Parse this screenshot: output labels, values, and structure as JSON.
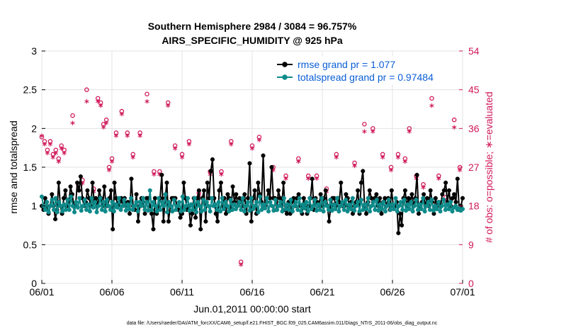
{
  "colors": {
    "rmse": "#000000",
    "spread": "#0e8a8a",
    "obs": "#d0185a",
    "legend_text": "#0a5ed7"
  },
  "chart_data": {
    "type": "line",
    "title": "Southern Hemisphere 2984 / 3084 = 96.757%",
    "subtitle": "AIRS_SPECIFIC_HUMIDITY @ 925 hPa",
    "xlabel": "Jun.01,2011 00:00:00 start",
    "ylabel": "rmse and totalspread",
    "ylabel_right": "# of obs: o=possible; ∗=evaluated",
    "xlim": [
      0,
      30
    ],
    "ylim": [
      0,
      3
    ],
    "ylim_right": [
      0,
      54
    ],
    "x_ticks": [
      0,
      5,
      10,
      15,
      20,
      25,
      30
    ],
    "x_tick_labels": [
      "06/01",
      "06/06",
      "06/11",
      "06/16",
      "06/21",
      "06/26",
      "07/01"
    ],
    "y_ticks": [
      0,
      0.5,
      1,
      1.5,
      2,
      2.5,
      3
    ],
    "y_tick_labels": [
      "0",
      "0.5",
      "1",
      "1.5",
      "2",
      "2.5",
      "3"
    ],
    "y_right_ticks": [
      0,
      9,
      18,
      27,
      36,
      45,
      54
    ],
    "y_right_tick_labels": [
      "0",
      "9",
      "18",
      "27",
      "36",
      "45",
      "54"
    ],
    "grid": true,
    "legend_position": "top-right",
    "series": [
      {
        "name": "rmse grand pr = 1.077",
        "axis": "left",
        "marker": "filled-circle",
        "values": [
          1.0,
          0.95,
          1.1,
          1.0,
          0.9,
          1.0,
          1.15,
          1.0,
          0.83,
          0.95,
          1.3,
          1.0,
          0.9,
          1.1,
          1.2,
          1.0,
          1.05,
          1.25,
          1.15,
          1.0,
          1.0,
          1.3,
          1.2,
          1.38,
          1.1,
          1.0,
          1.05,
          1.2,
          1.1,
          1.0,
          1.3,
          1.05,
          1.1,
          1.0,
          1.2,
          1.1,
          1.0,
          1.25,
          1.0,
          1.0,
          1.1,
          1.2,
          0.7,
          1.3,
          1.1,
          1.0,
          1.05,
          1.1,
          1.0,
          1.1,
          1.0,
          1.05,
          0.9,
          1.35,
          1.0,
          0.95,
          1.15,
          0.8,
          1.0,
          1.1,
          1.05,
          0.9,
          1.1,
          1.1,
          1.0,
          0.9,
          0.7,
          1.1,
          0.9,
          1.0,
          1.1,
          1.4,
          0.8,
          1.1,
          1.3,
          0.8,
          1.0,
          1.1,
          1.1,
          1.1,
          1.0,
          0.95,
          0.85,
          0.9,
          1.3,
          1.1,
          0.95,
          1.0,
          0.75,
          0.9,
          1.1,
          0.85,
          1.1,
          1.2,
          0.7,
          1.1,
          1.2,
          0.8,
          1.3,
          1.1,
          1.45,
          1.6,
          1.1,
          0.9,
          0.8,
          1.2,
          1.3,
          1.0,
          1.1,
          0.9,
          1.15,
          1.1,
          0.95,
          1.25,
          1.05,
          1.15,
          1.0,
          1.1,
          1.05,
          1.0,
          1.15,
          0.9,
          1.1,
          1.55,
          0.8,
          1.1,
          1.2,
          0.9,
          1.3,
          1.15,
          1.05,
          1.65,
          1.0,
          1.05,
          1.2,
          1.1,
          1.5,
          1.1,
          1.1,
          0.95,
          1.2,
          1.1,
          1.0,
          1.3,
          0.95,
          0.9,
          1.05,
          0.9,
          1.05,
          1.1,
          1.0,
          1.1,
          1.15,
          1.0,
          0.9,
          1.1,
          1.0,
          0.9,
          1.0,
          1.1,
          1.35,
          0.95,
          1.1,
          1.05,
          1.0,
          1.15,
          1.0,
          1.1,
          1.2,
          1.0,
          0.8,
          1.0,
          1.1,
          1.1,
          1.0,
          1.1,
          1.05,
          1.3,
          1.0,
          1.0,
          1.15,
          1.1,
          1.0,
          1.05,
          0.9,
          1.0,
          1.05,
          1.2,
          0.9,
          1.3,
          1.45,
          1.0,
          0.9,
          1.05,
          1.2,
          1.1,
          1.05,
          1.1,
          1.15,
          1.0,
          1.1,
          0.9,
          1.05,
          1.1,
          1.0,
          1.1,
          0.95,
          1.2,
          1.0,
          1.0,
          1.05,
          0.65,
          0.9,
          0.75,
          1.1,
          1.2,
          1.0,
          1.1,
          1.05,
          1.15,
          1.0,
          1.1,
          1.4,
          0.9,
          1.0,
          1.05,
          1.15,
          1.0,
          1.1,
          1.0,
          1.2,
          1.05,
          0.9,
          1.1,
          1.0,
          1.05,
          1.0,
          1.15,
          1.2,
          1.3,
          1.05,
          1.2,
          1.0,
          1.1,
          1.15,
          1.05,
          1.35,
          0.95,
          1.0,
          1.1
        ]
      },
      {
        "name": "totalspread grand pr = 0.97484",
        "axis": "left",
        "marker": "filled-circle",
        "values": [
          1.12,
          1.0,
          0.95,
          1.05,
          0.92,
          1.0,
          1.08,
          0.95,
          1.1,
          0.92,
          1.05,
          1.0,
          0.93,
          1.02,
          0.95,
          1.08,
          0.95,
          1.12,
          1.0,
          0.92,
          1.05,
          0.98,
          1.1,
          0.94,
          1.0,
          1.08,
          0.95,
          1.02,
          0.93,
          1.1,
          0.98,
          1.05,
          0.92,
          1.0,
          1.1,
          0.95,
          1.05,
          0.93,
          1.08,
          1.0,
          0.95,
          1.05,
          0.93,
          1.02,
          0.98,
          1.1,
          0.95,
          1.0,
          1.08,
          0.94,
          1.02,
          0.96,
          1.1,
          0.95,
          1.0,
          1.05,
          0.93,
          1.05,
          1.0,
          1.1,
          0.95,
          1.05,
          0.94,
          1.2,
          0.95,
          1.05,
          1.0,
          0.93,
          1.1,
          0.95,
          1.05,
          1.0,
          1.15,
          0.92,
          1.05,
          1.0,
          0.93,
          1.08,
          0.95,
          1.0,
          1.05,
          0.93,
          1.12,
          0.95,
          1.0,
          1.1,
          0.94,
          1.02,
          0.95,
          1.1,
          0.92,
          1.05,
          1.0,
          0.93,
          1.08,
          0.95,
          1.05,
          1.0,
          0.93,
          1.1,
          1.0,
          1.02,
          0.95,
          1.05,
          0.93,
          1.1,
          0.96,
          1.05,
          1.0,
          0.93,
          1.08,
          0.95,
          1.02,
          0.96,
          1.0,
          1.05,
          0.95,
          1.1,
          0.93,
          1.0,
          1.05,
          0.94,
          1.1,
          0.96,
          1.0,
          1.05,
          0.92,
          1.12,
          0.95,
          1.02,
          0.97,
          1.1,
          0.93,
          1.05,
          1.0,
          0.94,
          1.08,
          0.95,
          1.0,
          1.05,
          0.93,
          1.1,
          0.96,
          1.02,
          0.95,
          1.08,
          0.93,
          1.0,
          1.05,
          0.95,
          1.1,
          0.93,
          1.02,
          0.97,
          1.05,
          0.93,
          1.1,
          0.96,
          1.0,
          1.08,
          0.94,
          1.02,
          0.95,
          1.1,
          0.93,
          1.05,
          1.0,
          0.95,
          1.08,
          0.94,
          1.02,
          0.96,
          1.1,
          0.93,
          1.0,
          1.05,
          0.95,
          1.08,
          0.93,
          1.02,
          0.96,
          1.1,
          0.94,
          1.0,
          1.05,
          0.93,
          1.08,
          0.95,
          1.02,
          0.96,
          1.1,
          0.93,
          1.0,
          1.05,
          0.95,
          1.08,
          0.94,
          1.02,
          0.96,
          1.05,
          0.93,
          1.0,
          1.08,
          0.95,
          1.02,
          0.96,
          1.1,
          0.93,
          1.0,
          1.05,
          0.95,
          1.08,
          0.94,
          1.02,
          0.96,
          1.05,
          0.93,
          1.0,
          1.08,
          0.95,
          1.02,
          0.96,
          1.1,
          0.93,
          1.0,
          1.05,
          0.95,
          1.08,
          0.94,
          1.0,
          0.96,
          1.05,
          0.93,
          1.0,
          1.08,
          0.95,
          1.02,
          0.96,
          1.05,
          0.93,
          0.98,
          1.0,
          0.95,
          0.97,
          0.94,
          0.96
        ]
      }
    ],
    "obs_possible": {
      "name": "o=possible",
      "axis": "right",
      "points": [
        [
          0.0,
          34
        ],
        [
          0.2,
          33
        ],
        [
          0.4,
          31
        ],
        [
          0.6,
          33
        ],
        [
          0.8,
          30
        ],
        [
          1.0,
          31
        ],
        [
          1.2,
          29
        ],
        [
          1.4,
          32
        ],
        [
          1.6,
          31
        ],
        [
          2.2,
          39
        ],
        [
          2.6,
          23
        ],
        [
          2.9,
          24
        ],
        [
          3.2,
          45
        ],
        [
          3.7,
          22
        ],
        [
          4.0,
          43
        ],
        [
          4.2,
          42
        ],
        [
          4.4,
          37
        ],
        [
          4.6,
          38
        ],
        [
          4.8,
          27
        ],
        [
          5.0,
          29
        ],
        [
          5.3,
          35
        ],
        [
          5.7,
          40
        ],
        [
          6.1,
          35
        ],
        [
          6.5,
          30
        ],
        [
          7.0,
          35
        ],
        [
          7.5,
          44
        ],
        [
          8.0,
          26
        ],
        [
          8.4,
          26
        ],
        [
          9.0,
          42
        ],
        [
          9.5,
          32
        ],
        [
          10.0,
          30
        ],
        [
          10.5,
          33
        ],
        [
          11.2,
          21
        ],
        [
          12.0,
          26
        ],
        [
          12.8,
          26
        ],
        [
          13.5,
          33
        ],
        [
          14.2,
          5
        ],
        [
          15.0,
          32
        ],
        [
          15.5,
          34
        ],
        [
          16.5,
          27
        ],
        [
          17.4,
          25
        ],
        [
          18.3,
          29
        ],
        [
          19.0,
          25
        ],
        [
          19.6,
          25
        ],
        [
          20.3,
          22
        ],
        [
          21.0,
          30
        ],
        [
          21.6,
          50
        ],
        [
          22.3,
          28
        ],
        [
          23.0,
          37
        ],
        [
          23.6,
          36
        ],
        [
          24.3,
          30
        ],
        [
          24.9,
          27
        ],
        [
          25.4,
          30
        ],
        [
          25.9,
          29
        ],
        [
          26.2,
          36
        ],
        [
          26.7,
          25
        ],
        [
          27.2,
          23
        ],
        [
          27.8,
          43
        ],
        [
          28.3,
          25
        ],
        [
          28.8,
          20
        ],
        [
          29.4,
          38
        ],
        [
          29.8,
          27
        ]
      ]
    },
    "obs_evaluated": {
      "name": "∗=evaluated",
      "axis": "right",
      "points": [
        [
          0.0,
          34
        ],
        [
          0.2,
          32
        ],
        [
          0.4,
          30
        ],
        [
          0.6,
          32
        ],
        [
          0.8,
          29
        ],
        [
          1.0,
          30
        ],
        [
          1.2,
          28
        ],
        [
          1.4,
          31
        ],
        [
          1.6,
          30
        ],
        [
          2.2,
          37
        ],
        [
          2.6,
          22
        ],
        [
          2.9,
          23
        ],
        [
          3.2,
          42
        ],
        [
          3.7,
          21
        ],
        [
          4.0,
          42
        ],
        [
          4.2,
          41
        ],
        [
          4.4,
          36
        ],
        [
          4.6,
          37
        ],
        [
          4.8,
          26
        ],
        [
          5.0,
          28
        ],
        [
          5.3,
          34
        ],
        [
          5.7,
          39
        ],
        [
          6.1,
          34
        ],
        [
          6.5,
          29
        ],
        [
          7.0,
          34
        ],
        [
          7.5,
          42
        ],
        [
          8.0,
          25
        ],
        [
          8.4,
          25
        ],
        [
          9.0,
          41
        ],
        [
          9.5,
          31
        ],
        [
          10.0,
          29
        ],
        [
          10.5,
          32
        ],
        [
          11.2,
          20
        ],
        [
          12.0,
          25
        ],
        [
          12.8,
          25
        ],
        [
          13.5,
          32
        ],
        [
          14.2,
          4
        ],
        [
          15.0,
          31
        ],
        [
          15.5,
          33
        ],
        [
          16.5,
          26
        ],
        [
          17.4,
          24
        ],
        [
          18.3,
          28
        ],
        [
          19.0,
          24
        ],
        [
          19.6,
          24
        ],
        [
          20.3,
          21
        ],
        [
          21.0,
          29
        ],
        [
          21.6,
          48
        ],
        [
          22.3,
          27
        ],
        [
          23.0,
          35
        ],
        [
          23.6,
          35
        ],
        [
          24.3,
          29
        ],
        [
          24.9,
          26
        ],
        [
          25.4,
          29
        ],
        [
          25.9,
          28
        ],
        [
          26.2,
          35
        ],
        [
          26.7,
          24
        ],
        [
          27.2,
          22
        ],
        [
          27.8,
          41
        ],
        [
          28.3,
          24
        ],
        [
          28.8,
          19
        ],
        [
          29.4,
          36
        ],
        [
          29.8,
          26
        ]
      ]
    },
    "footnote": "data file: /Users/raeder/DAI/ATM_forcXX/CAM6_setup/f.e21.FHIST_BGC.f09_025.CAM6assim.011/Diags_NTrS_2011-06/obs_diag_output.nc"
  }
}
